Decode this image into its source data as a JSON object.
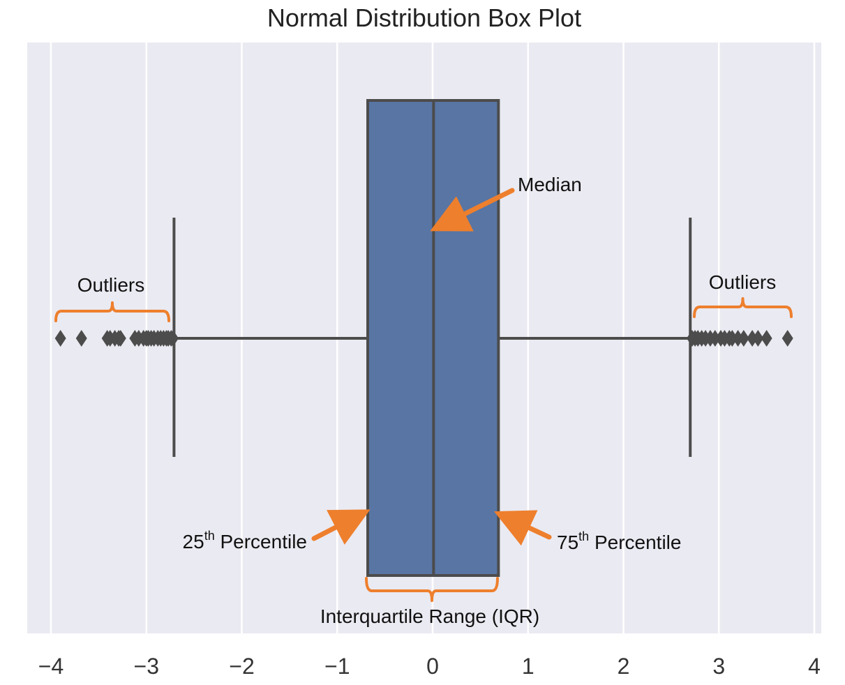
{
  "chart_data": {
    "type": "box",
    "title": "Normal Distribution Box Plot",
    "xlim": [
      -4.25,
      4.1
    ],
    "xticks": [
      -4,
      -3,
      -2,
      -1,
      0,
      1,
      2,
      3,
      4
    ],
    "xtick_labels": [
      "−4",
      "−3",
      "−2",
      "−1",
      "0",
      "1",
      "2",
      "3",
      "4"
    ],
    "grid": true,
    "orientation": "horizontal",
    "box": {
      "q1": -0.68,
      "median": 0.01,
      "q3": 0.69,
      "whisker_low": -2.71,
      "whisker_high": 2.7
    },
    "outliers_low": [
      -3.9,
      -3.68,
      -3.41,
      -3.38,
      -3.33,
      -3.29,
      -3.27,
      -3.12,
      -3.08,
      -3.03,
      -3.0,
      -2.98,
      -2.95,
      -2.92,
      -2.88,
      -2.85,
      -2.82,
      -2.79,
      -2.77,
      -2.74,
      -2.72
    ],
    "outliers_high": [
      2.72,
      2.75,
      2.78,
      2.82,
      2.86,
      2.91,
      2.96,
      3.02,
      3.06,
      3.11,
      3.14,
      3.2,
      3.26,
      3.35,
      3.41,
      3.5,
      3.72
    ],
    "annotations": {
      "median": "Median",
      "outliers_left": "Outliers",
      "outliers_right": "Outliers",
      "p25_num": "25",
      "p25_sup": "th",
      "p25_text": " Percentile",
      "p75_num": "75",
      "p75_sup": "th",
      "p75_text": " Percentile",
      "iqr": "Interquartile Range (IQR)"
    }
  },
  "colors": {
    "plot_bg": "#eaeaf2",
    "grid": "#ffffff",
    "box_fill": "#5875a4",
    "box_line": "#4c4c4c",
    "annotation": "#ee7f2d"
  }
}
